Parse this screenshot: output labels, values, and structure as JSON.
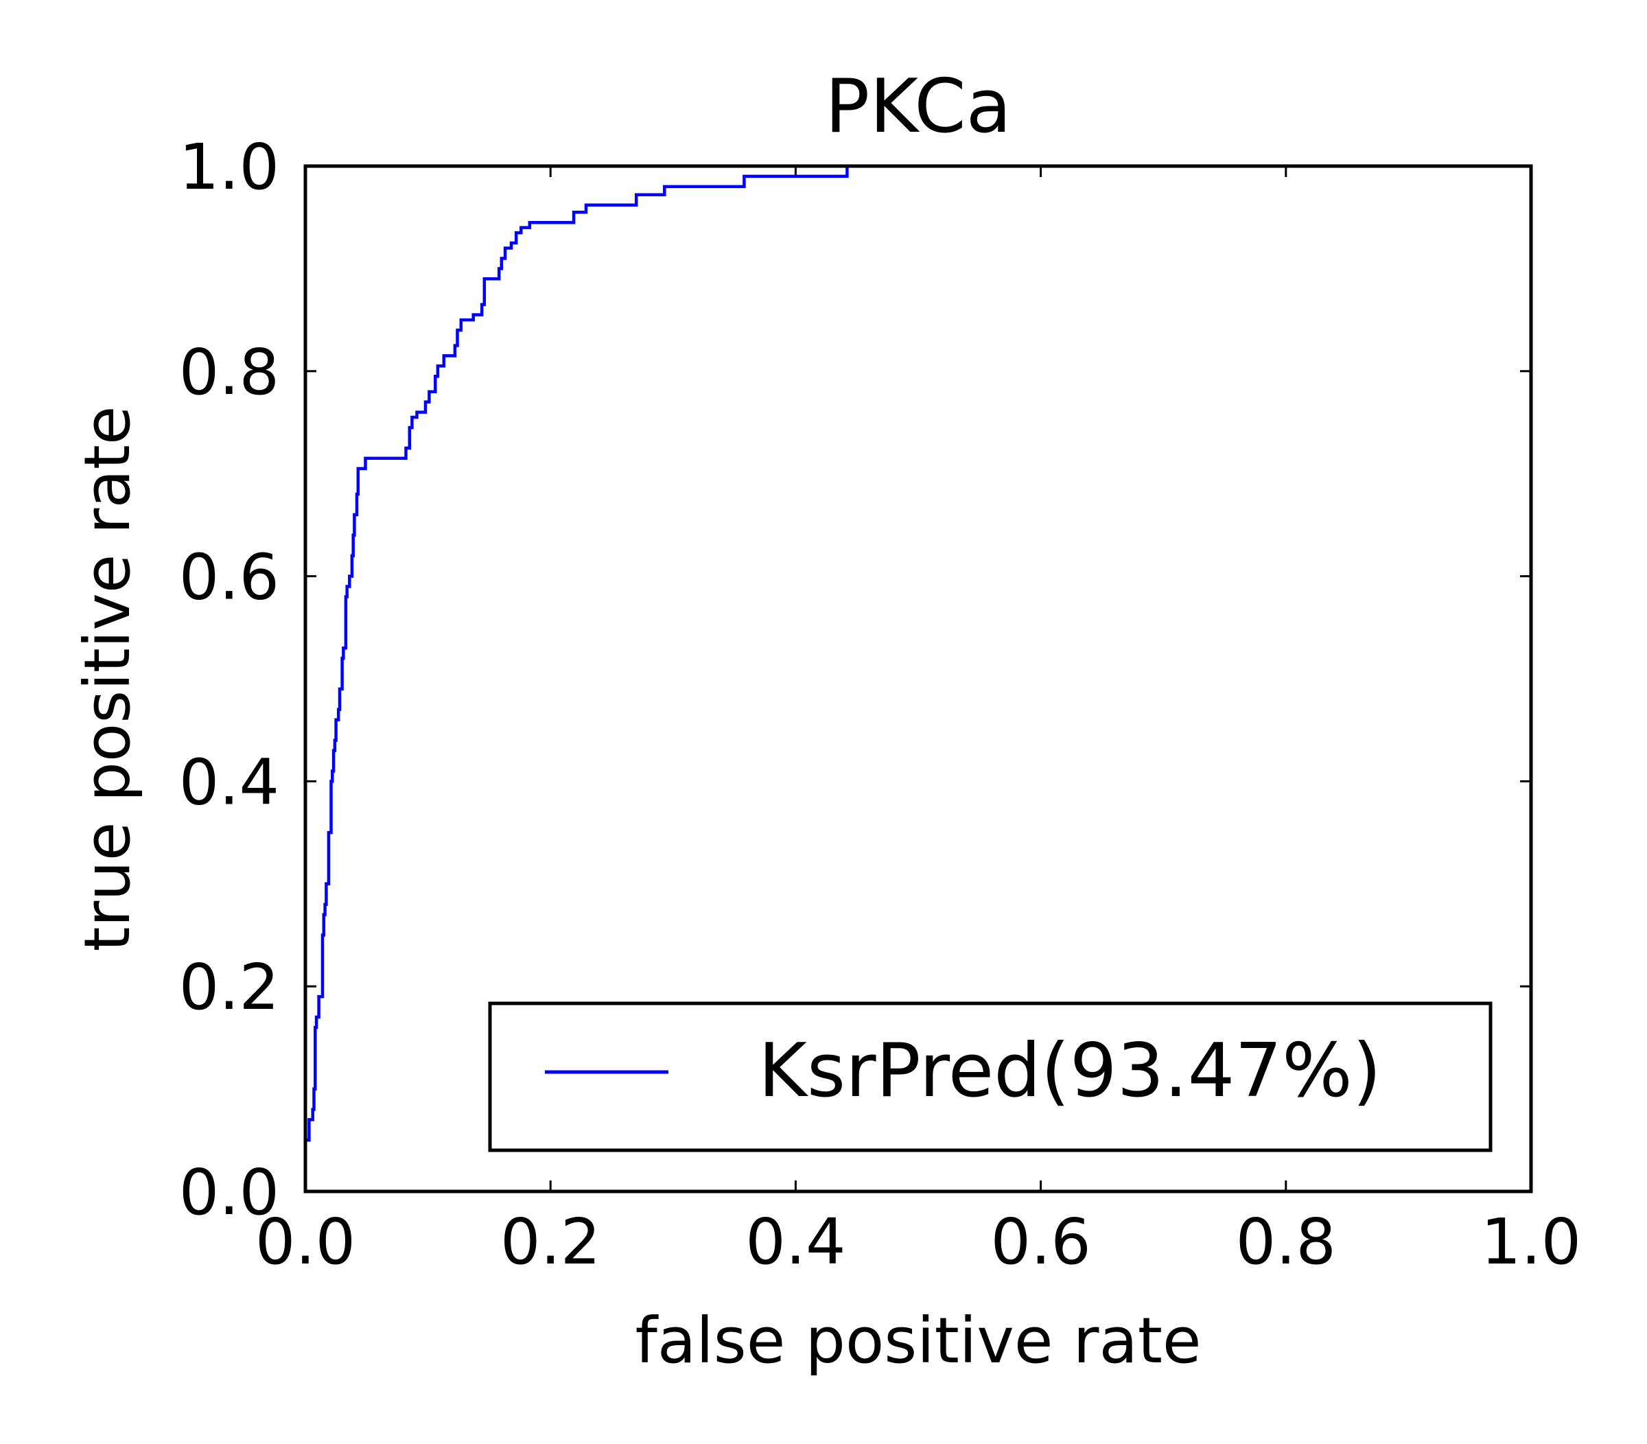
{
  "chart_data": {
    "type": "line",
    "title": "PKCa",
    "xlabel": "false positive rate",
    "ylabel": "true positive rate",
    "xlim": [
      0.0,
      1.0
    ],
    "ylim": [
      0.0,
      1.0
    ],
    "xticks": [
      "0.0",
      "0.2",
      "0.4",
      "0.6",
      "0.8",
      "1.0"
    ],
    "yticks": [
      "0.0",
      "0.2",
      "0.4",
      "0.6",
      "0.8",
      "1.0"
    ],
    "grid": false,
    "legend_position": "lower right",
    "series": [
      {
        "name": "KsrPred(93.47%)",
        "color": "#0000ff",
        "x": [
          0.0,
          0.0,
          0.003,
          0.003,
          0.006,
          0.006,
          0.007,
          0.007,
          0.008,
          0.008,
          0.009,
          0.009,
          0.011,
          0.011,
          0.014,
          0.014,
          0.015,
          0.015,
          0.016,
          0.016,
          0.017,
          0.017,
          0.019,
          0.019,
          0.021,
          0.021,
          0.022,
          0.022,
          0.023,
          0.023,
          0.024,
          0.024,
          0.025,
          0.025,
          0.027,
          0.027,
          0.028,
          0.028,
          0.03,
          0.03,
          0.031,
          0.031,
          0.033,
          0.033,
          0.034,
          0.034,
          0.036,
          0.036,
          0.038,
          0.038,
          0.039,
          0.039,
          0.04,
          0.04,
          0.042,
          0.042,
          0.043,
          0.043,
          0.049,
          0.049,
          0.05,
          0.05,
          0.052,
          0.052,
          0.053,
          0.053,
          0.056,
          0.056,
          0.058,
          0.058,
          0.06,
          0.06,
          0.063,
          0.063,
          0.069,
          0.069,
          0.082,
          0.082,
          0.085,
          0.085,
          0.087,
          0.087,
          0.091,
          0.091,
          0.098,
          0.098,
          0.101,
          0.101,
          0.106,
          0.106,
          0.108,
          0.108,
          0.113,
          0.113,
          0.122,
          0.122,
          0.124,
          0.124,
          0.127,
          0.127,
          0.137,
          0.137,
          0.144,
          0.144,
          0.146,
          0.146,
          0.158,
          0.158,
          0.16,
          0.16,
          0.163,
          0.163,
          0.168,
          0.168,
          0.172,
          0.172,
          0.176,
          0.176,
          0.183,
          0.183,
          0.188,
          0.188,
          0.219,
          0.219,
          0.229,
          0.229,
          0.27,
          0.27,
          0.293,
          0.293,
          0.358,
          0.358,
          0.442,
          0.442
        ],
        "y": [
          0.0,
          0.05,
          0.05,
          0.07,
          0.07,
          0.08,
          0.08,
          0.1,
          0.1,
          0.16,
          0.16,
          0.17,
          0.17,
          0.19,
          0.19,
          0.25,
          0.25,
          0.27,
          0.27,
          0.28,
          0.28,
          0.3,
          0.3,
          0.35,
          0.35,
          0.4,
          0.4,
          0.41,
          0.41,
          0.43,
          0.43,
          0.44,
          0.44,
          0.46,
          0.46,
          0.47,
          0.47,
          0.49,
          0.49,
          0.52,
          0.52,
          0.53,
          0.53,
          0.58,
          0.58,
          0.59,
          0.59,
          0.6,
          0.6,
          0.62,
          0.62,
          0.64,
          0.64,
          0.66,
          0.66,
          0.68,
          0.68,
          0.705,
          0.705,
          0.715,
          0.715,
          0.715,
          0.715,
          0.715,
          0.715,
          0.715,
          0.715,
          0.715,
          0.715,
          0.715,
          0.715,
          0.715,
          0.715,
          0.715,
          0.715,
          0.715,
          0.715,
          0.725,
          0.725,
          0.745,
          0.745,
          0.755,
          0.755,
          0.76,
          0.76,
          0.77,
          0.77,
          0.78,
          0.78,
          0.795,
          0.795,
          0.805,
          0.805,
          0.815,
          0.815,
          0.825,
          0.825,
          0.84,
          0.84,
          0.85,
          0.85,
          0.855,
          0.855,
          0.865,
          0.865,
          0.89,
          0.89,
          0.9,
          0.9,
          0.91,
          0.91,
          0.92,
          0.92,
          0.925,
          0.925,
          0.935,
          0.935,
          0.94,
          0.94,
          0.945,
          0.945,
          0.945,
          0.945,
          0.955,
          0.955,
          0.962,
          0.962,
          0.972,
          0.972,
          0.98,
          0.98,
          0.99,
          0.99,
          1.0
        ]
      }
    ]
  }
}
